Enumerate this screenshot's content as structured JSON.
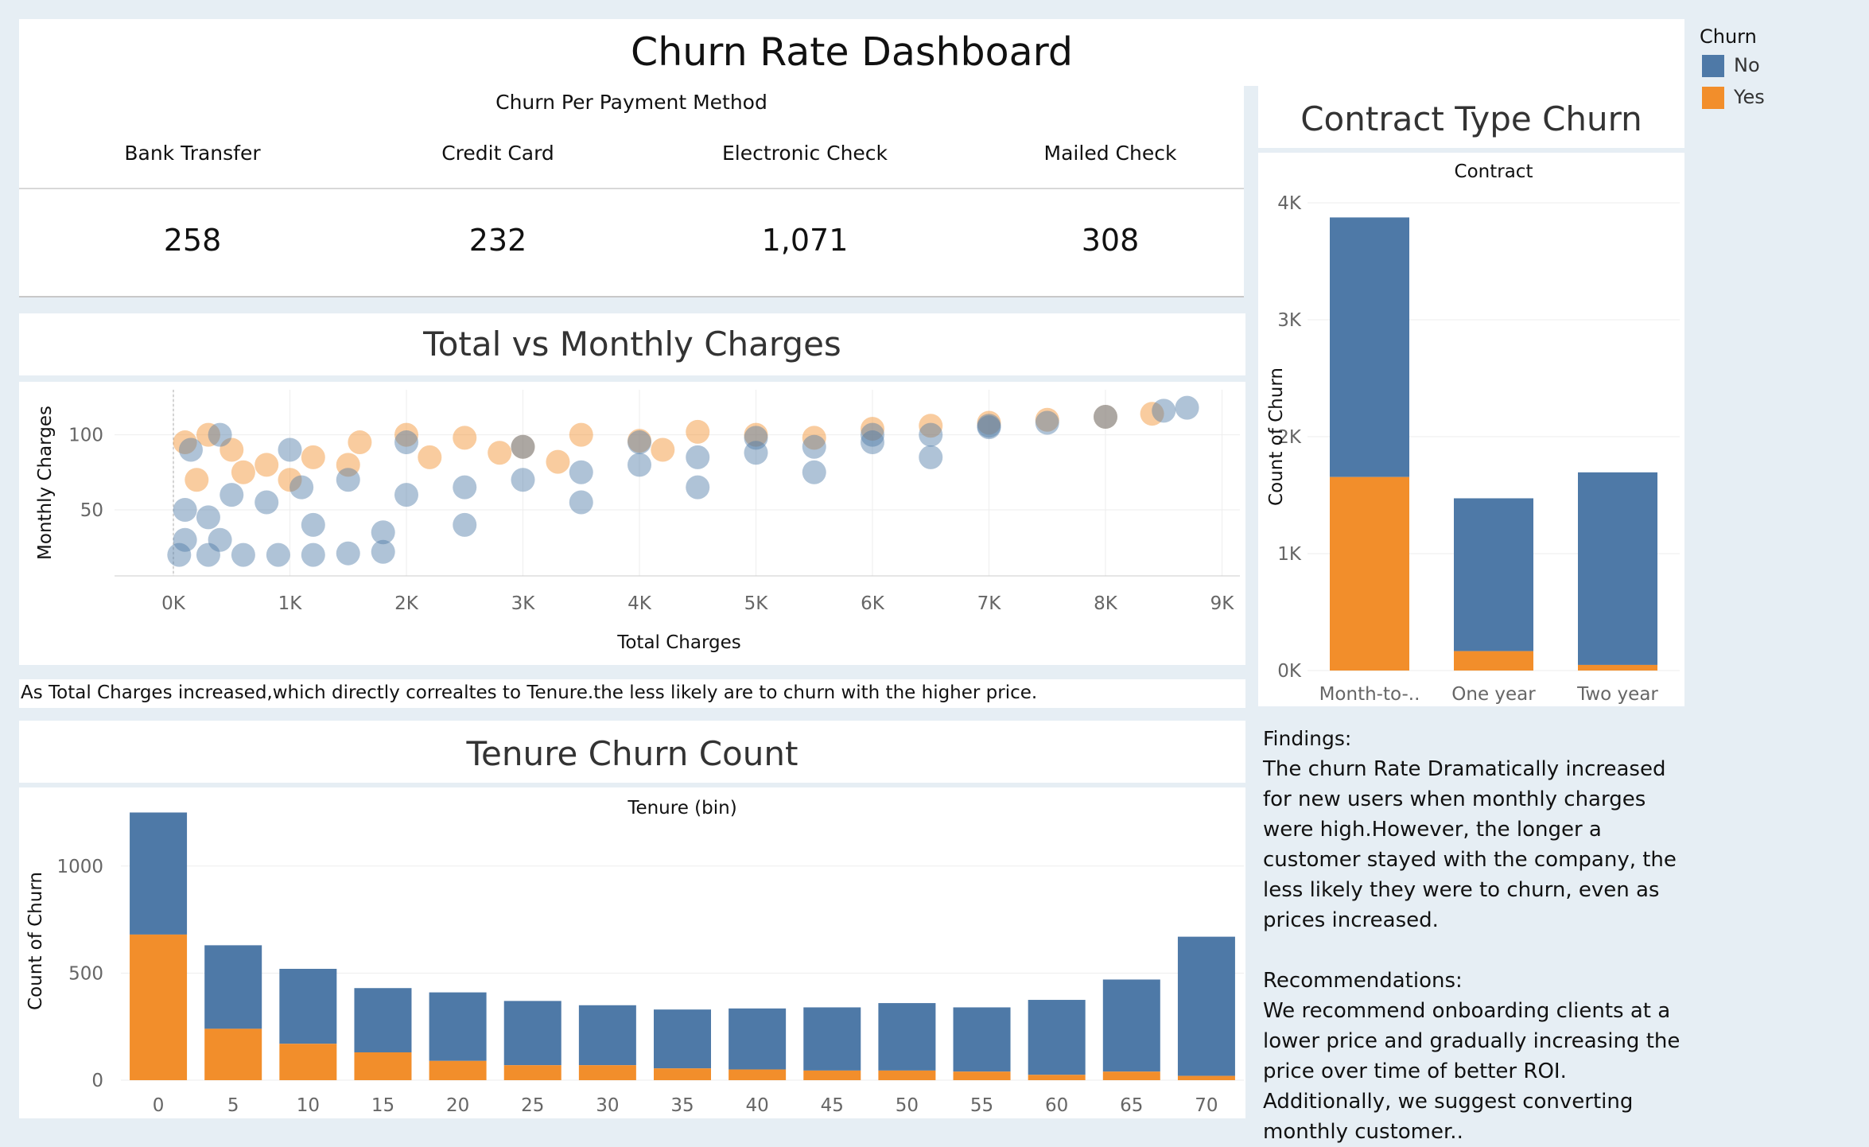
{
  "title": "Churn Rate Dashboard",
  "legend": {
    "title": "Churn",
    "items": [
      {
        "label": "No",
        "color": "#4e79a7"
      },
      {
        "label": "Yes",
        "color": "#f28e2b"
      }
    ]
  },
  "payment": {
    "title": "Churn Per Payment Method",
    "methods": [
      {
        "label": "Bank Transfer",
        "value": "258"
      },
      {
        "label": "Credit Card",
        "value": "232"
      },
      {
        "label": "Electronic Check",
        "value": "1,071"
      },
      {
        "label": "Mailed Check",
        "value": "308"
      }
    ]
  },
  "scatter_title": "Total vs Monthly Charges",
  "tenure_title": "Tenure Churn Count",
  "contract_title": "Contract Type Churn",
  "scatter_note": "As Total Charges increased,which directly correaltes to Tenure.the less likely are to churn  with the higher price.",
  "findings": {
    "heading": "Findings:",
    "text": "The churn Rate Dramatically increased for new users when monthly charges were high.However, the longer a customer stayed with the company, the less likely they were to churn, even as prices increased.",
    "rec_heading": "Recommendations:",
    "rec_text": "We recommend onboarding clients at a lower price and gradually increasing the price over time of better ROI. Additionally, we suggest converting monthly customer.."
  },
  "chart_data": [
    {
      "id": "scatter",
      "type": "scatter",
      "xlabel": "Total Charges",
      "ylabel": "Monthly Charges",
      "xlim": [
        0,
        9000
      ],
      "x_ticks": [
        "0K",
        "1K",
        "2K",
        "3K",
        "4K",
        "5K",
        "6K",
        "7K",
        "8K",
        "9K"
      ],
      "y_ticks": [
        "50",
        "100"
      ],
      "series": [
        {
          "name": "Yes",
          "color": "#f28e2b",
          "points": [
            [
              100,
              95
            ],
            [
              300,
              100
            ],
            [
              500,
              90
            ],
            [
              800,
              80
            ],
            [
              1200,
              85
            ],
            [
              1600,
              95
            ],
            [
              2000,
              100
            ],
            [
              2500,
              98
            ],
            [
              3000,
              92
            ],
            [
              3500,
              100
            ],
            [
              4000,
              96
            ],
            [
              4500,
              102
            ],
            [
              5000,
              100
            ],
            [
              5500,
              98
            ],
            [
              6000,
              104
            ],
            [
              6500,
              106
            ],
            [
              7000,
              108
            ],
            [
              7500,
              110
            ],
            [
              8000,
              112
            ],
            [
              8400,
              114
            ],
            [
              200,
              70
            ],
            [
              600,
              75
            ],
            [
              1000,
              70
            ],
            [
              1500,
              80
            ],
            [
              2200,
              85
            ],
            [
              2800,
              88
            ],
            [
              3300,
              82
            ],
            [
              4200,
              90
            ]
          ]
        },
        {
          "name": "No",
          "color": "#4e79a7",
          "points": [
            [
              50,
              20
            ],
            [
              300,
              20
            ],
            [
              600,
              20
            ],
            [
              900,
              20
            ],
            [
              1200,
              20
            ],
            [
              1500,
              21
            ],
            [
              1800,
              22
            ],
            [
              100,
              50
            ],
            [
              300,
              45
            ],
            [
              500,
              60
            ],
            [
              800,
              55
            ],
            [
              1100,
              65
            ],
            [
              1500,
              70
            ],
            [
              2000,
              60
            ],
            [
              2500,
              65
            ],
            [
              3000,
              70
            ],
            [
              3500,
              75
            ],
            [
              4000,
              80
            ],
            [
              4500,
              85
            ],
            [
              5000,
              88
            ],
            [
              5500,
              92
            ],
            [
              6000,
              95
            ],
            [
              6500,
              100
            ],
            [
              7000,
              105
            ],
            [
              7500,
              108
            ],
            [
              8000,
              112
            ],
            [
              8500,
              116
            ],
            [
              8700,
              118
            ],
            [
              150,
              90
            ],
            [
              400,
              100
            ],
            [
              1000,
              90
            ],
            [
              2000,
              95
            ],
            [
              3000,
              92
            ],
            [
              4000,
              95
            ],
            [
              5000,
              98
            ],
            [
              6000,
              100
            ],
            [
              7000,
              106
            ],
            [
              2500,
              40
            ],
            [
              3500,
              55
            ],
            [
              4500,
              65
            ],
            [
              5500,
              75
            ],
            [
              6500,
              85
            ],
            [
              1200,
              40
            ],
            [
              1800,
              35
            ],
            [
              100,
              30
            ],
            [
              400,
              30
            ]
          ]
        }
      ]
    },
    {
      "id": "tenure",
      "type": "bar",
      "title": "Tenure (bin)",
      "ylabel": "Count of Churn",
      "categories": [
        "0",
        "5",
        "10",
        "15",
        "20",
        "25",
        "30",
        "35",
        "40",
        "45",
        "50",
        "55",
        "60",
        "65",
        "70"
      ],
      "y_ticks": [
        "0",
        "500",
        "1000"
      ],
      "ylim": [
        0,
        1300
      ],
      "series": [
        {
          "name": "Yes",
          "values": [
            680,
            240,
            170,
            130,
            90,
            70,
            70,
            55,
            50,
            45,
            45,
            40,
            25,
            40,
            20
          ]
        },
        {
          "name": "No",
          "values": [
            570,
            390,
            350,
            300,
            320,
            300,
            280,
            275,
            285,
            295,
            315,
            300,
            350,
            430,
            650
          ]
        }
      ]
    },
    {
      "id": "contract",
      "type": "bar",
      "title": "Contract",
      "ylabel": "Count of Churn",
      "categories": [
        "Month-to-..",
        "One year",
        "Two year"
      ],
      "y_ticks": [
        "0K",
        "1K",
        "2K",
        "3K",
        "4K"
      ],
      "ylim": [
        0,
        4000
      ],
      "series": [
        {
          "name": "Yes",
          "values": [
            1655,
            166,
            48
          ]
        },
        {
          "name": "No",
          "values": [
            2220,
            1307,
            1647
          ]
        }
      ]
    }
  ]
}
